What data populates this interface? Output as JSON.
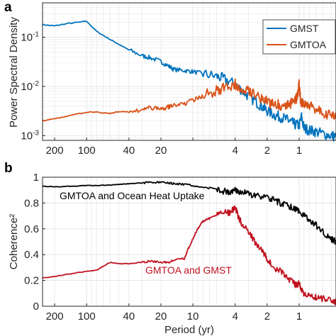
{
  "chart_data": [
    {
      "panel_label": "a",
      "type": "line",
      "ylabel": "Power Spectral Density",
      "xlabel": "",
      "x_axis": "period (log, reversed)",
      "y_scale": "log",
      "xlim": [
        260,
        0.45
      ],
      "ylim": [
        0.0008,
        0.5
      ],
      "xticks": [
        200,
        100,
        40,
        20,
        10,
        4,
        2,
        1
      ],
      "xtick_labels": [
        "200",
        "100",
        "40",
        "20",
        "",
        "4",
        "2",
        "1"
      ],
      "yticks": [
        0.001,
        0.01,
        0.1
      ],
      "ytick_labels": [
        "10-3",
        "10-2",
        "10-1"
      ],
      "grid": true,
      "legend_position": "top-right",
      "series": [
        {
          "name": "GMST",
          "color": "#0072BD",
          "x": [
            260,
            200,
            150,
            100,
            80,
            60,
            50,
            40,
            30,
            25,
            20,
            17,
            15,
            12,
            10,
            8,
            6,
            5,
            4,
            3.5,
            3,
            2.5,
            2.2,
            2,
            1.7,
            1.5,
            1.3,
            1.2,
            1.1,
            1.0,
            0.95,
            0.9,
            0.8,
            0.7,
            0.6,
            0.5,
            0.45
          ],
          "y": [
            0.18,
            0.17,
            0.19,
            0.21,
            0.13,
            0.09,
            0.072,
            0.055,
            0.042,
            0.038,
            0.032,
            0.026,
            0.022,
            0.021,
            0.02,
            0.018,
            0.016,
            0.014,
            0.011,
            0.0085,
            0.0063,
            0.0047,
            0.0038,
            0.0032,
            0.0026,
            0.0024,
            0.0021,
            0.0019,
            0.0017,
            0.0016,
            0.0024,
            0.0014,
            0.0013,
            0.0012,
            0.0011,
            0.001,
            0.00095
          ]
        },
        {
          "name": "GMTOA",
          "color": "#D95319",
          "x": [
            260,
            200,
            150,
            100,
            80,
            60,
            50,
            40,
            30,
            25,
            20,
            17,
            15,
            12,
            10,
            8,
            6,
            5,
            4,
            3.5,
            3,
            2.5,
            2.2,
            2,
            1.7,
            1.5,
            1.3,
            1.2,
            1.1,
            1.05,
            1.0,
            0.97,
            0.9,
            0.8,
            0.7,
            0.6,
            0.5,
            0.45
          ],
          "y": [
            0.002,
            0.0022,
            0.0025,
            0.003,
            0.003,
            0.0028,
            0.0031,
            0.003,
            0.0034,
            0.0037,
            0.0035,
            0.0038,
            0.0042,
            0.0045,
            0.0052,
            0.0065,
            0.0082,
            0.0095,
            0.011,
            0.0095,
            0.0085,
            0.0068,
            0.0055,
            0.0048,
            0.0043,
            0.0042,
            0.0042,
            0.0045,
            0.005,
            0.006,
            0.011,
            0.005,
            0.0045,
            0.004,
            0.0035,
            0.003,
            0.0026,
            0.0022
          ]
        }
      ]
    },
    {
      "panel_label": "b",
      "type": "line",
      "ylabel": "Coherence²",
      "xlabel": "Period (yr)",
      "x_axis": "period (log, reversed)",
      "y_scale": "linear",
      "xlim": [
        260,
        0.45
      ],
      "ylim": [
        0,
        1
      ],
      "xticks": [
        200,
        100,
        40,
        20,
        10,
        4,
        2,
        1
      ],
      "xtick_labels": [
        "200",
        "100",
        "40",
        "20",
        "10",
        "4",
        "2",
        "1"
      ],
      "yticks": [
        0,
        0.2,
        0.4,
        0.6,
        0.8,
        1
      ],
      "ytick_labels": [
        "0",
        "0.2",
        "0.4",
        "0.6",
        "0.8",
        "1"
      ],
      "grid": true,
      "series": [
        {
          "name": "GMTOA and Ocean Heat Uptake",
          "color": "#000000",
          "x": [
            260,
            200,
            150,
            100,
            80,
            60,
            50,
            40,
            30,
            25,
            20,
            17,
            15,
            12,
            10,
            8,
            6,
            5,
            4.5,
            4,
            3.5,
            3,
            2.5,
            2,
            1.7,
            1.5,
            1.3,
            1.1,
            1.0,
            0.9,
            0.8,
            0.7,
            0.6,
            0.5,
            0.45
          ],
          "y": [
            0.93,
            0.925,
            0.93,
            0.935,
            0.935,
            0.94,
            0.945,
            0.95,
            0.955,
            0.958,
            0.96,
            0.955,
            0.95,
            0.945,
            0.935,
            0.92,
            0.91,
            0.89,
            0.88,
            0.9,
            0.885,
            0.87,
            0.855,
            0.84,
            0.82,
            0.8,
            0.78,
            0.76,
            0.74,
            0.7,
            0.67,
            0.63,
            0.58,
            0.52,
            0.5
          ]
        },
        {
          "name": "GMTOA and GMST",
          "color": "#C1121F",
          "x": [
            260,
            200,
            150,
            100,
            80,
            70,
            60,
            50,
            40,
            30,
            25,
            20,
            17,
            15,
            12,
            11,
            10,
            9,
            8,
            7,
            6,
            5,
            4.5,
            4,
            3.7,
            3.5,
            3,
            2.5,
            2.2,
            2,
            1.7,
            1.5,
            1.3,
            1.1,
            1.05,
            1.0,
            0.95,
            0.9,
            0.8,
            0.7,
            0.6,
            0.5,
            0.45
          ],
          "y": [
            0.22,
            0.23,
            0.25,
            0.27,
            0.28,
            0.31,
            0.34,
            0.33,
            0.33,
            0.34,
            0.35,
            0.34,
            0.34,
            0.36,
            0.37,
            0.45,
            0.52,
            0.6,
            0.66,
            0.68,
            0.71,
            0.74,
            0.72,
            0.77,
            0.68,
            0.65,
            0.58,
            0.47,
            0.42,
            0.37,
            0.29,
            0.27,
            0.22,
            0.17,
            0.16,
            0.18,
            0.12,
            0.1,
            0.09,
            0.07,
            0.06,
            0.04,
            0.03
          ]
        }
      ]
    }
  ]
}
